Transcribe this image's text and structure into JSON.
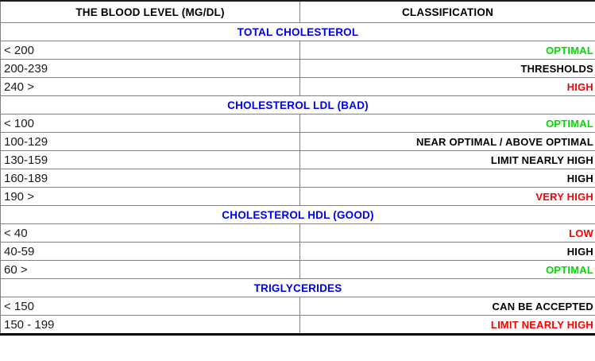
{
  "colors": {
    "section-title": "#0000EE",
    "optimal": "#00DC00",
    "danger": "#FF0000",
    "text": "#000000",
    "border": "#808080"
  },
  "table": {
    "header": {
      "level_column": "THE BLOOD LEVEL (MG/DL)",
      "classification_column": "CLASSIFICATION"
    },
    "sections": [
      {
        "title": "TOTAL CHOLESTEROL",
        "rows": [
          {
            "level": "< 200",
            "classification": "OPTIMAL",
            "status": "optimal"
          },
          {
            "level": "200-239",
            "classification": "THRESHOLDS",
            "status": "neutral"
          },
          {
            "level": "240 >",
            "classification": "HIGH",
            "status": "danger"
          }
        ]
      },
      {
        "title": "CHOLESTEROL LDL (BAD)",
        "rows": [
          {
            "level": "< 100",
            "classification": "OPTIMAL",
            "status": "optimal"
          },
          {
            "level": "100-129",
            "classification": "NEAR OPTIMAL / ABOVE OPTIMAL",
            "status": "neutral"
          },
          {
            "level": "130-159",
            "classification": "LIMIT NEARLY HIGH",
            "status": "neutral"
          },
          {
            "level": "160-189",
            "classification": "HIGH",
            "status": "neutral"
          },
          {
            "level": "190 >",
            "classification": "VERY HIGH",
            "status": "danger"
          }
        ]
      },
      {
        "title": "CHOLESTEROL HDL (GOOD)",
        "rows": [
          {
            "level": "< 40",
            "classification": "LOW",
            "status": "danger"
          },
          {
            "level": "40-59",
            "classification": "HIGH",
            "status": "neutral"
          },
          {
            "level": "60 >",
            "classification": "OPTIMAL",
            "status": "optimal"
          }
        ]
      },
      {
        "title": "TRIGLYCERIDES",
        "rows": [
          {
            "level": "< 150",
            "classification": "CAN BE ACCEPTED",
            "status": "neutral"
          },
          {
            "level": "150 - 199",
            "classification": "LIMIT NEARLY HIGH",
            "status": "danger"
          }
        ]
      }
    ]
  }
}
